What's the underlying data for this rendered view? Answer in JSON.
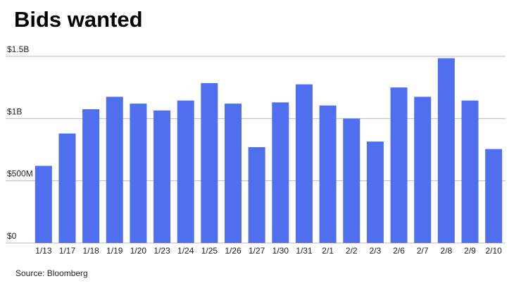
{
  "chart_data": {
    "type": "bar",
    "title": "Bids wanted",
    "source": "Source: Bloomberg",
    "categories": [
      "1/13",
      "1/17",
      "1/18",
      "1/19",
      "1/20",
      "1/23",
      "1/24",
      "1/25",
      "1/26",
      "1/27",
      "1/30",
      "1/31",
      "2/1",
      "2/2",
      "2/3",
      "2/6",
      "2/7",
      "2/8",
      "2/9",
      "2/10"
    ],
    "values": [
      620000000,
      880000000,
      1075000000,
      1175000000,
      1120000000,
      1065000000,
      1145000000,
      1285000000,
      1120000000,
      770000000,
      1130000000,
      1275000000,
      1105000000,
      1000000000,
      815000000,
      1250000000,
      1175000000,
      1485000000,
      1145000000,
      755000000
    ],
    "color": "#4f6fee",
    "ylim": [
      0,
      1500000000
    ],
    "yticks": [
      {
        "value": 0,
        "label": "$0"
      },
      {
        "value": 500000000,
        "label": "$500M"
      },
      {
        "value": 1000000000,
        "label": "$1B"
      },
      {
        "value": 1500000000,
        "label": "$1.5B"
      }
    ],
    "grid": true
  }
}
